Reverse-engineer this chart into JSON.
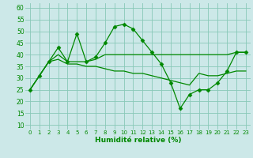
{
  "xlabel": "Humidité relative (%)",
  "bg_color": "#cce8e8",
  "grid_color": "#88c8b8",
  "line_color": "#008800",
  "xlim": [
    -0.5,
    23.5
  ],
  "ylim": [
    8,
    62
  ],
  "yticks": [
    10,
    15,
    20,
    25,
    30,
    35,
    40,
    45,
    50,
    55,
    60
  ],
  "xticks": [
    0,
    1,
    2,
    3,
    4,
    5,
    6,
    7,
    8,
    9,
    10,
    11,
    12,
    13,
    14,
    15,
    16,
    17,
    18,
    19,
    20,
    21,
    22,
    23
  ],
  "line1_x": [
    0,
    1,
    2,
    3,
    4,
    5,
    6,
    7,
    8,
    9,
    10,
    11,
    12,
    13,
    14,
    15,
    16,
    17,
    18,
    19,
    20,
    21,
    22,
    23
  ],
  "line1_y": [
    25,
    31,
    37,
    43,
    37,
    49,
    37,
    39,
    45,
    52,
    53,
    51,
    46,
    41,
    36,
    28,
    17,
    23,
    25,
    25,
    28,
    33,
    41,
    41
  ],
  "line3_x": [
    0,
    1,
    2,
    3,
    4,
    5,
    6,
    7,
    8,
    9,
    10,
    11,
    12,
    13,
    14,
    15,
    16,
    17,
    18,
    19,
    20,
    21,
    22,
    23
  ],
  "line3_y": [
    25,
    31,
    37,
    38,
    36,
    36,
    35,
    35,
    34,
    33,
    33,
    32,
    32,
    31,
    30,
    29,
    28,
    27,
    32,
    31,
    31,
    32,
    33,
    33
  ],
  "line4_x": [
    0,
    1,
    2,
    3,
    4,
    5,
    6,
    7,
    8,
    9,
    10,
    11,
    12,
    13,
    14,
    15,
    16,
    17,
    18,
    19,
    20,
    21,
    22,
    23
  ],
  "line4_y": [
    25,
    31,
    37,
    40,
    37,
    37,
    37,
    38,
    40,
    40,
    40,
    40,
    40,
    40,
    40,
    40,
    40,
    40,
    40,
    40,
    40,
    40,
    41,
    41
  ]
}
